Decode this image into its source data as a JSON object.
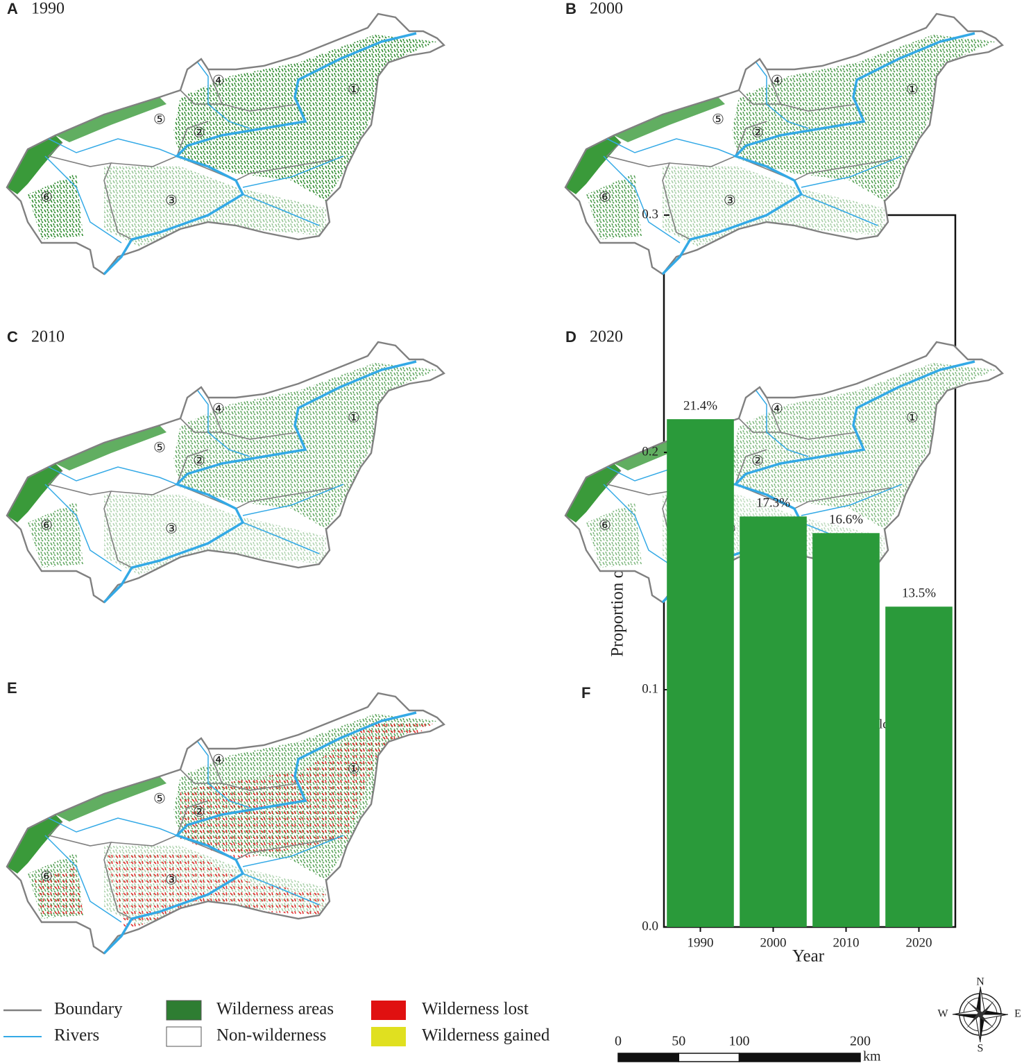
{
  "panels": [
    {
      "letter": "A",
      "year": "1990"
    },
    {
      "letter": "B",
      "year": "2000"
    },
    {
      "letter": "C",
      "year": "2010"
    },
    {
      "letter": "D",
      "year": "2020"
    },
    {
      "letter": "E"
    }
  ],
  "region_labels": [
    "①",
    "②",
    "③",
    "④",
    "⑤",
    "⑥"
  ],
  "chart_data": {
    "type": "bar",
    "panel": "F",
    "xlabel": "Year",
    "ylabel": "Proportion of wilderness",
    "categories": [
      "1990",
      "2000",
      "2010",
      "2020"
    ],
    "series": [
      {
        "name": "wilderness",
        "color": "#2a9a3a",
        "values": [
          0.214,
          0.173,
          0.166,
          0.135
        ],
        "value_labels": [
          "21.4%",
          "17.3%",
          "16.6%",
          "13.5%"
        ]
      }
    ],
    "ylim": [
      0,
      0.3
    ],
    "yticks": [
      {
        "value": 0,
        "label": "0.0"
      },
      {
        "value": 0.1,
        "label": "0.1"
      },
      {
        "value": 0.2,
        "label": "0.2"
      },
      {
        "value": 0.3,
        "label": "0.3"
      }
    ],
    "legend": "top-right"
  },
  "legend": [
    {
      "label": "Boundary",
      "color": "#808080"
    },
    {
      "label": "Rivers",
      "color": "#33a9e6"
    },
    {
      "label": "Wilderness areas",
      "color": "#2e7d32"
    },
    {
      "label": "Non-wilderness",
      "color": "#ffffff"
    },
    {
      "label": "Wilderness lost",
      "color": "#e01010"
    },
    {
      "label": "Wilderness gained",
      "color": "#e0e020"
    }
  ],
  "scale_bar": {
    "ticks": [
      0,
      50,
      100,
      200
    ],
    "unit": "km"
  },
  "compass": {
    "n": "N",
    "e": "E",
    "s": "S",
    "w": "W"
  }
}
